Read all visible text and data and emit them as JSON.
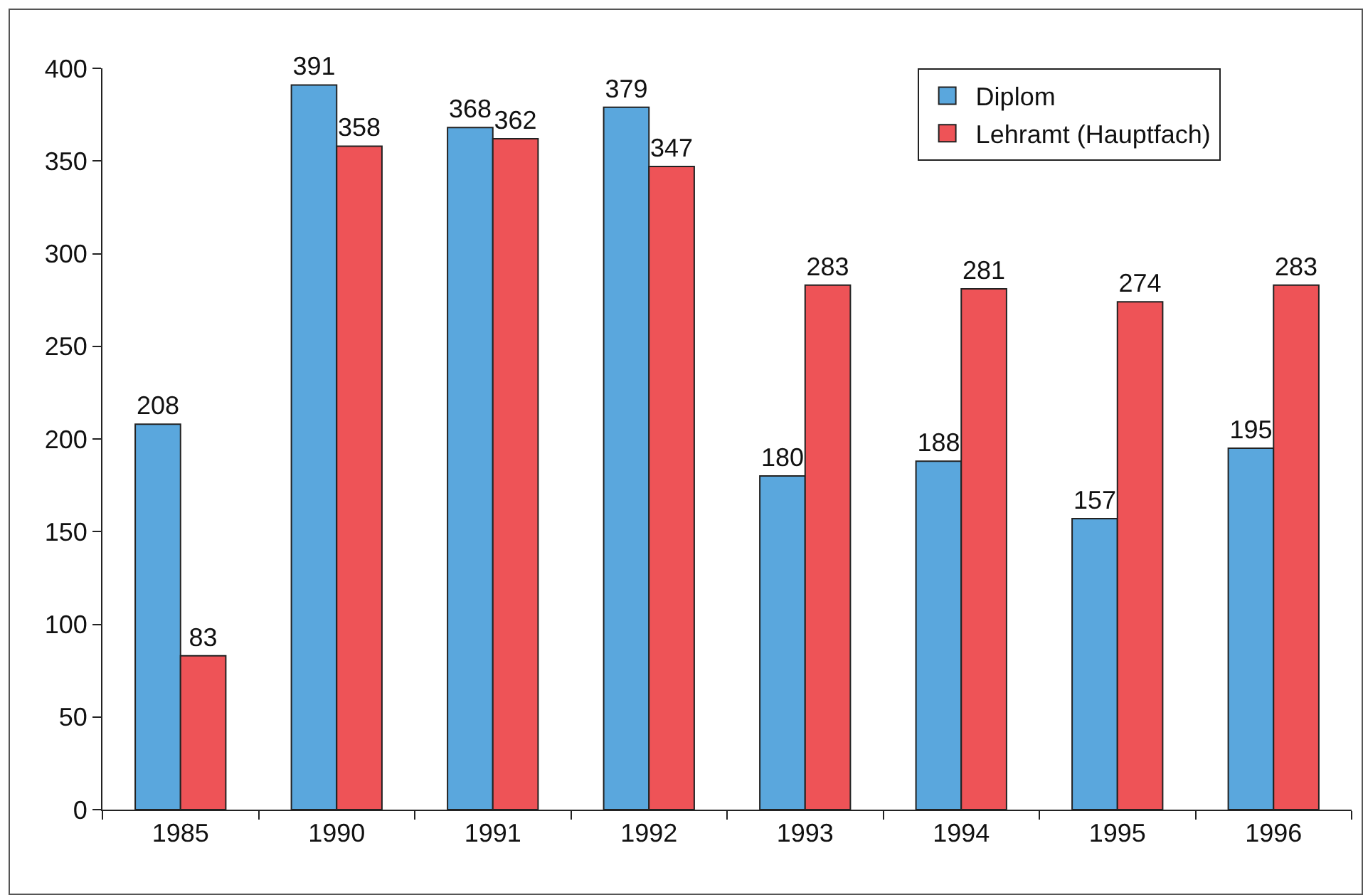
{
  "chart_data": {
    "type": "bar",
    "categories": [
      "1985",
      "1990",
      "1991",
      "1992",
      "1993",
      "1994",
      "1995",
      "1996"
    ],
    "series": [
      {
        "name": "Diplom",
        "color": "#5aa7dd",
        "values": [
          208,
          391,
          368,
          379,
          180,
          188,
          157,
          195
        ]
      },
      {
        "name": "Lehramt (Hauptfach)",
        "color": "#ee5357",
        "values": [
          83,
          358,
          362,
          347,
          283,
          281,
          274,
          283
        ]
      }
    ],
    "ylim": [
      0,
      400
    ],
    "yticks": [
      0,
      50,
      100,
      150,
      200,
      250,
      300,
      350,
      400
    ],
    "grid": false,
    "legend": "top right",
    "data_labels": true
  }
}
